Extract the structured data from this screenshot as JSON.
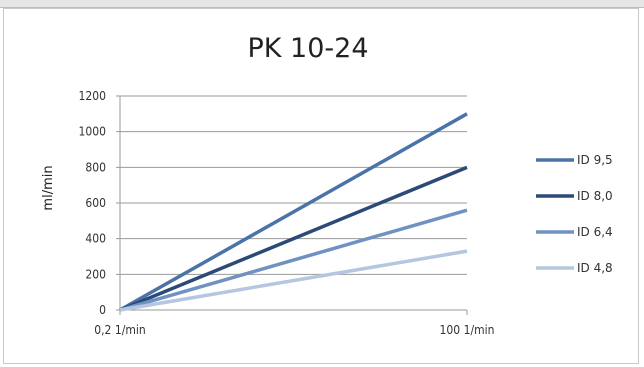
{
  "chart_data": {
    "type": "line",
    "title": "PK 10-24",
    "ylabel": "ml/min",
    "xlabel": "",
    "categories": [
      "0,2 1/min",
      "100 1/min"
    ],
    "ylim": [
      0,
      1200
    ],
    "yticks": [
      "0",
      "200",
      "400",
      "600",
      "800",
      "1000",
      "1200"
    ],
    "grid": true,
    "legend_position": "right",
    "series": [
      {
        "name": "ID 9,5",
        "values": [
          0,
          1100
        ],
        "color": "#4a73a8"
      },
      {
        "name": "ID 8,0",
        "values": [
          0,
          800
        ],
        "color": "#2b4a78"
      },
      {
        "name": "ID 6,4",
        "values": [
          0,
          560
        ],
        "color": "#6f92c2"
      },
      {
        "name": "ID 4,8",
        "values": [
          0,
          330
        ],
        "color": "#b4c6e0"
      }
    ]
  }
}
